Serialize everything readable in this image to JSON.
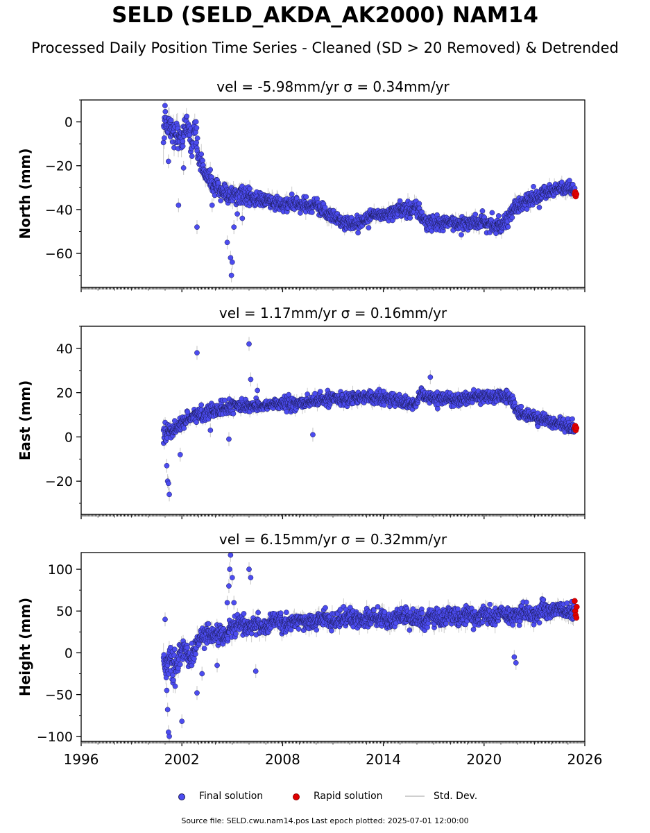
{
  "title": "SELD (SELD_AKDA_AK2000) NAM14",
  "subtitle": "Processed Daily Position Time Series - Cleaned (SD > 20 Removed) & Detrended",
  "legend": {
    "final": "Final solution",
    "rapid": "Rapid solution",
    "std": "Std. Dev."
  },
  "footer": "Source file: SELD.cwu.nam14.pos  Last epoch plotted: 2025-07-01 12:00:00",
  "colors": {
    "final": "#4c4cf0",
    "final_edge": "#1a1a55",
    "rapid": "#e00000",
    "std": "#cccccc"
  },
  "chart_data": [
    {
      "type": "scatter",
      "title": "vel = -5.98mm/yr   σ = 0.34mm/yr",
      "ylabel": "North (mm)",
      "xlim": [
        1996,
        2026
      ],
      "ylim": [
        -75.5,
        10
      ],
      "yticks": [
        0,
        -20,
        -40,
        -60
      ],
      "ytick_labels": [
        "0",
        "−20",
        "−40",
        "−60"
      ],
      "series": [
        {
          "name": "Final solution",
          "x": [
            2000.9,
            2001.0,
            2001.1,
            2001.3,
            2001.5,
            2001.8,
            2002.0,
            2002.2,
            2002.4,
            2002.6,
            2002.8,
            2003.0,
            2003.3,
            2003.6,
            2004.0,
            2004.5,
            2005.0,
            2005.5,
            2006.0,
            2006.5,
            2007.0,
            2007.5,
            2008.0,
            2008.5,
            2009.0,
            2009.5,
            2010.0,
            2010.5,
            2011.0,
            2011.5,
            2012.0,
            2012.5,
            2013.0,
            2013.5,
            2014.0,
            2014.5,
            2015.0,
            2015.5,
            2016.0,
            2016.5,
            2017.0,
            2017.5,
            2018.0,
            2018.5,
            2019.0,
            2019.5,
            2020.0,
            2020.5,
            2021.0,
            2021.4,
            2021.8,
            2022.2,
            2022.6,
            2023.0,
            2023.5,
            2024.0,
            2024.5,
            2025.0,
            2025.4
          ],
          "y": [
            -5,
            3,
            0,
            -2,
            -5,
            -6,
            -8,
            -2,
            -5,
            -9,
            -4,
            -16,
            -22,
            -26,
            -30,
            -32,
            -34,
            -33,
            -35,
            -35,
            -36,
            -37,
            -38,
            -37,
            -38,
            -39,
            -38,
            -41,
            -43,
            -45,
            -47,
            -46,
            -44,
            -43,
            -42,
            -41,
            -40,
            -40,
            -39,
            -46,
            -46,
            -47,
            -46,
            -46,
            -46,
            -46,
            -46,
            -47,
            -47,
            -44,
            -39,
            -38,
            -36,
            -35,
            -33,
            -31,
            -30,
            -31,
            -32
          ],
          "spread": [
            8,
            7,
            6,
            5,
            5,
            5,
            5,
            5,
            5,
            5,
            5,
            4,
            3.5,
            3.5,
            3.5,
            3.5,
            3.5,
            3.5,
            3.5,
            3,
            3,
            3,
            3,
            3,
            3,
            3,
            3,
            3,
            3,
            3,
            3,
            3,
            3,
            3,
            3,
            3,
            3,
            3,
            3,
            3,
            3,
            3,
            3,
            3,
            3,
            3,
            3,
            3,
            3,
            3,
            3,
            3,
            3,
            3,
            3,
            3,
            3,
            3,
            3
          ]
        },
        {
          "name": "Rapid solution",
          "x": [
            2025.4,
            2025.43,
            2025.46,
            2025.5
          ],
          "y": [
            -33,
            -32,
            -34,
            -33
          ]
        }
      ],
      "outliers": {
        "x": [
          2001.2,
          2001.8,
          2002.1,
          2002.9,
          2003.8,
          2004.7,
          2004.9,
          2004.95,
          2005.0,
          2005.1,
          2005.3,
          2005.6
        ],
        "y": [
          -18,
          -38,
          -21,
          -48,
          -38,
          -55,
          -62,
          -70,
          -64,
          -48,
          -42,
          -44
        ]
      }
    },
    {
      "type": "scatter",
      "title": "vel = 1.17mm/yr   σ = 0.16mm/yr",
      "ylabel": "East (mm)",
      "xlim": [
        1996,
        2026
      ],
      "ylim": [
        -35,
        50
      ],
      "yticks": [
        40,
        20,
        0,
        -20
      ],
      "ytick_labels": [
        "40",
        "20",
        "0",
        "−20"
      ],
      "series": [
        {
          "name": "Final solution",
          "x": [
            2000.9,
            2001.0,
            2001.2,
            2001.5,
            2001.8,
            2002.0,
            2002.3,
            2002.6,
            2003.0,
            2003.5,
            2004.0,
            2004.5,
            2005.0,
            2005.5,
            2006.0,
            2006.5,
            2007.0,
            2007.5,
            2008.0,
            2008.5,
            2009.0,
            2009.5,
            2010.0,
            2010.5,
            2011.0,
            2011.5,
            2012.0,
            2012.5,
            2013.0,
            2013.5,
            2014.0,
            2014.5,
            2015.0,
            2015.5,
            2015.9,
            2016.2,
            2016.6,
            2017.0,
            2017.5,
            2018.0,
            2018.5,
            2019.0,
            2019.5,
            2020.0,
            2020.5,
            2021.0,
            2021.3,
            2021.6,
            2022.0,
            2022.5,
            2023.0,
            2023.5,
            2024.0,
            2024.5,
            2025.0,
            2025.4
          ],
          "y": [
            -2,
            1,
            2,
            3,
            5,
            7,
            8,
            9,
            10,
            11,
            12,
            13,
            14,
            14,
            14,
            14,
            14,
            15,
            15,
            15,
            15,
            16,
            16,
            17,
            17,
            17,
            18,
            18,
            18,
            18,
            18,
            17,
            16,
            15,
            14,
            19,
            18,
            17,
            17,
            17,
            17,
            18,
            18,
            18,
            18,
            19,
            18,
            17,
            11,
            10,
            9,
            8,
            7,
            6,
            5,
            4
          ],
          "spread": [
            6,
            4,
            3,
            3,
            3,
            3,
            3,
            3,
            3,
            3,
            2.5,
            2.5,
            2.5,
            2.5,
            2.5,
            2.5,
            2.5,
            2.5,
            2.5,
            2.5,
            2.5,
            2.5,
            2.5,
            2.5,
            2.5,
            2.5,
            2.5,
            2.5,
            2.5,
            2.5,
            2.5,
            2.5,
            2.5,
            2.5,
            2.5,
            2.5,
            2.5,
            2.5,
            2.5,
            2.5,
            2.5,
            2.5,
            2.5,
            2.5,
            2.5,
            2.5,
            2.5,
            2.5,
            2.5,
            2.5,
            2.5,
            2.5,
            2.5,
            2.5,
            2.5,
            2.5
          ]
        },
        {
          "name": "Rapid solution",
          "x": [
            2025.4,
            2025.43,
            2025.46,
            2025.5
          ],
          "y": [
            4,
            5,
            3,
            4
          ]
        }
      ],
      "outliers": {
        "x": [
          2001.1,
          2001.15,
          2001.2,
          2001.25,
          2001.9,
          2002.9,
          2003.7,
          2004.8,
          2006.0,
          2006.1,
          2006.5,
          2009.8,
          2016.8
        ],
        "y": [
          -13,
          -20,
          -21,
          -26,
          -8,
          38,
          3,
          -1,
          42,
          26,
          21,
          1,
          27
        ]
      }
    },
    {
      "type": "scatter",
      "title": "vel = 6.15mm/yr   σ = 0.32mm/yr",
      "ylabel": "Height (mm)",
      "xlim": [
        1996,
        2026
      ],
      "ylim": [
        -106,
        120
      ],
      "yticks": [
        100,
        50,
        0,
        -50,
        -100
      ],
      "ytick_labels": [
        "100",
        "50",
        "0",
        "−50",
        "−100"
      ],
      "series": [
        {
          "name": "Final solution",
          "x": [
            2000.9,
            2001.1,
            2001.3,
            2001.6,
            2001.9,
            2002.2,
            2002.5,
            2002.8,
            2003.1,
            2003.5,
            2004.0,
            2004.5,
            2005.0,
            2005.5,
            2006.0,
            2006.5,
            2007.0,
            2007.5,
            2008.0,
            2008.5,
            2009.0,
            2009.5,
            2010.0,
            2010.5,
            2011.0,
            2011.5,
            2012.0,
            2012.5,
            2013.0,
            2013.5,
            2014.0,
            2014.5,
            2015.0,
            2015.5,
            2016.0,
            2016.5,
            2017.0,
            2017.5,
            2018.0,
            2018.5,
            2019.0,
            2019.5,
            2020.0,
            2020.5,
            2021.0,
            2021.5,
            2022.0,
            2022.5,
            2023.0,
            2023.5,
            2024.0,
            2024.5,
            2025.0,
            2025.4
          ],
          "y": [
            -5,
            -15,
            -10,
            -20,
            -5,
            5,
            -10,
            10,
            15,
            20,
            25,
            20,
            30,
            35,
            30,
            35,
            30,
            40,
            35,
            38,
            40,
            35,
            40,
            42,
            38,
            40,
            45,
            38,
            42,
            40,
            42,
            38,
            45,
            40,
            42,
            38,
            45,
            40,
            48,
            40,
            45,
            42,
            48,
            40,
            50,
            42,
            45,
            50,
            45,
            52,
            48,
            55,
            50,
            48
          ],
          "spread": [
            18,
            16,
            14,
            14,
            12,
            12,
            12,
            12,
            10,
            10,
            9,
            9,
            9,
            9,
            9,
            9,
            9,
            9,
            9,
            9,
            9,
            9,
            9,
            9,
            9,
            9,
            9,
            9,
            9,
            9,
            9,
            9,
            9,
            9,
            9,
            9,
            9,
            9,
            9,
            9,
            9,
            9,
            9,
            9,
            9,
            9,
            9,
            9,
            9,
            9,
            9,
            9,
            9,
            9
          ]
        },
        {
          "name": "Rapid solution",
          "x": [
            2025.4,
            2025.43,
            2025.46,
            2025.5,
            2025.52
          ],
          "y": [
            62,
            50,
            45,
            42,
            55
          ]
        }
      ],
      "outliers": {
        "x": [
          2001.0,
          2001.1,
          2001.15,
          2001.2,
          2001.25,
          2001.6,
          2002.0,
          2002.9,
          2003.2,
          2004.1,
          2004.7,
          2004.8,
          2004.85,
          2004.9,
          2005.0,
          2005.1,
          2006.0,
          2006.1,
          2006.4,
          2021.8,
          2021.9
        ],
        "y": [
          40,
          -45,
          -68,
          -95,
          -100,
          -40,
          -82,
          -48,
          -25,
          -15,
          60,
          80,
          100,
          117,
          90,
          60,
          100,
          90,
          -22,
          -5,
          -12
        ]
      }
    }
  ]
}
